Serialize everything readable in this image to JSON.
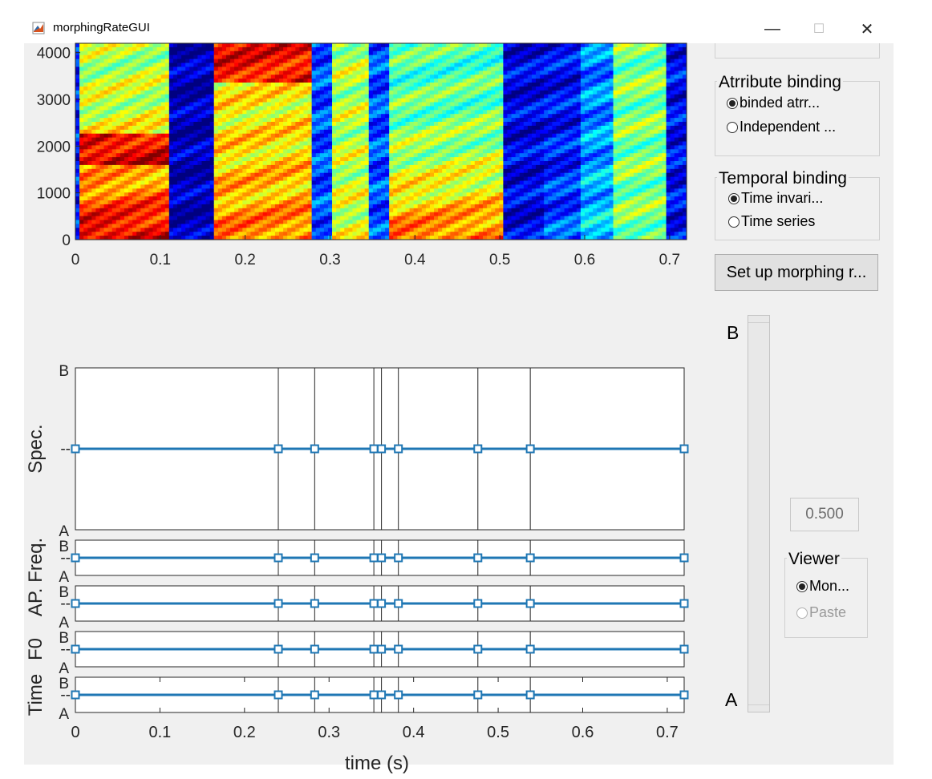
{
  "window": {
    "title": "morphingRateGUI",
    "minimize": "—",
    "maximize": "☐",
    "close": "✕"
  },
  "spectrogram": {
    "y_ticks": [
      "4000",
      "3000",
      "2000",
      "1000",
      "0"
    ],
    "x_ticks": [
      "0",
      "0.1",
      "0.2",
      "0.3",
      "0.4",
      "0.5",
      "0.6",
      "0.7"
    ]
  },
  "attribute_binding": {
    "title": "Atrribute binding",
    "options": [
      "binded atrr...",
      "Independent ..."
    ],
    "selected": 0
  },
  "temporal_binding": {
    "title": "Temporal binding",
    "options": [
      "Time invari...",
      "Time series"
    ],
    "selected": 0
  },
  "setup_button": "Set up morphing r...",
  "slider": {
    "top_label": "B",
    "bottom_label": "A",
    "value_text": "0.500",
    "value": 0.5
  },
  "viewer": {
    "title": "Viewer",
    "options": [
      "Mon...",
      "Paste"
    ],
    "selected": 0
  },
  "chart_data": {
    "type": "line",
    "x_anchors": [
      0,
      0.24,
      0.283,
      0.353,
      0.362,
      0.382,
      0.476,
      0.538,
      0.72
    ],
    "xlim": [
      0,
      0.72
    ],
    "x_ticks": [
      "0",
      "0.1",
      "0.2",
      "0.3",
      "0.4",
      "0.5",
      "0.6",
      "0.7"
    ],
    "xlabel": "time (s)",
    "y_ticks": {
      "top": "B",
      "mid": "--",
      "bottom": "A"
    },
    "level": 0.5,
    "series": [
      {
        "name": "Spec."
      },
      {
        "name": "AP. Freq."
      },
      {
        "name": "F0"
      },
      {
        "name": "Time"
      }
    ],
    "line_color": "#1f77b4"
  }
}
